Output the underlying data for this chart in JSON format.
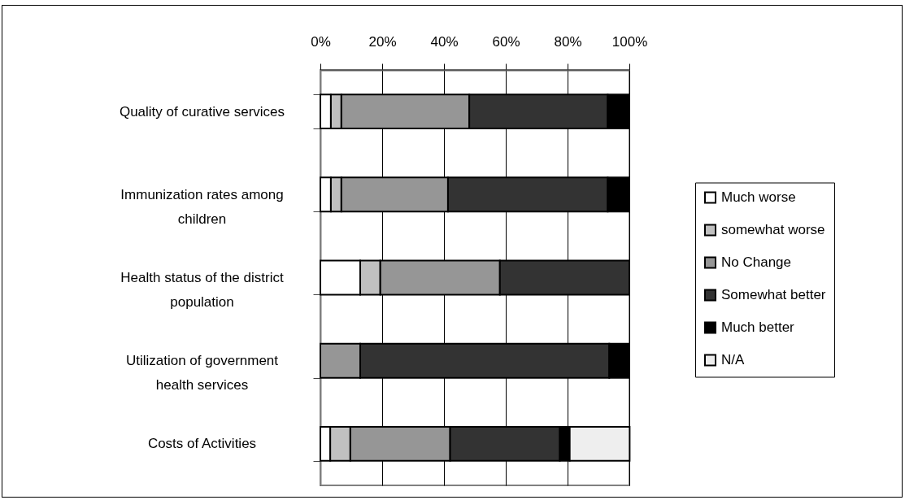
{
  "chart_data": {
    "type": "bar",
    "orientation": "horizontal",
    "stacked": true,
    "categories": [
      "Quality of curative services",
      "Immunization rates among children",
      "Health status of the district population",
      "Utilization of government health services",
      "Costs of Activities"
    ],
    "series": [
      {
        "name": "Much worse",
        "color": "#ffffff",
        "values": [
          3.4,
          3.4,
          12.9,
          null,
          3.2
        ]
      },
      {
        "name": "somewhat worse",
        "color": "#c0c0c0",
        "values": [
          3.4,
          3.4,
          6.5,
          null,
          6.5
        ]
      },
      {
        "name": "No Change",
        "color": "#969696",
        "values": [
          41.4,
          34.5,
          38.7,
          12.9,
          32.3
        ]
      },
      {
        "name": "Somewhat better",
        "color": "#333333",
        "values": [
          44.8,
          51.7,
          41.9,
          80.6,
          35.5
        ]
      },
      {
        "name": "Much better",
        "color": "#000000",
        "values": [
          6.9,
          6.9,
          null,
          6.5,
          3.2
        ]
      },
      {
        "name": "N/A",
        "color": "#eeeeee",
        "values": [
          null,
          null,
          null,
          null,
          19.4
        ]
      }
    ],
    "xlim": [
      0,
      100
    ],
    "xticks": [
      {
        "value": 0,
        "label": "0%"
      },
      {
        "value": 20,
        "label": "20%"
      },
      {
        "value": 40,
        "label": "40%"
      },
      {
        "value": 60,
        "label": "60%"
      },
      {
        "value": 80,
        "label": "80%"
      },
      {
        "value": 100,
        "label": "100%"
      }
    ],
    "grid": "x",
    "legend": "right"
  }
}
